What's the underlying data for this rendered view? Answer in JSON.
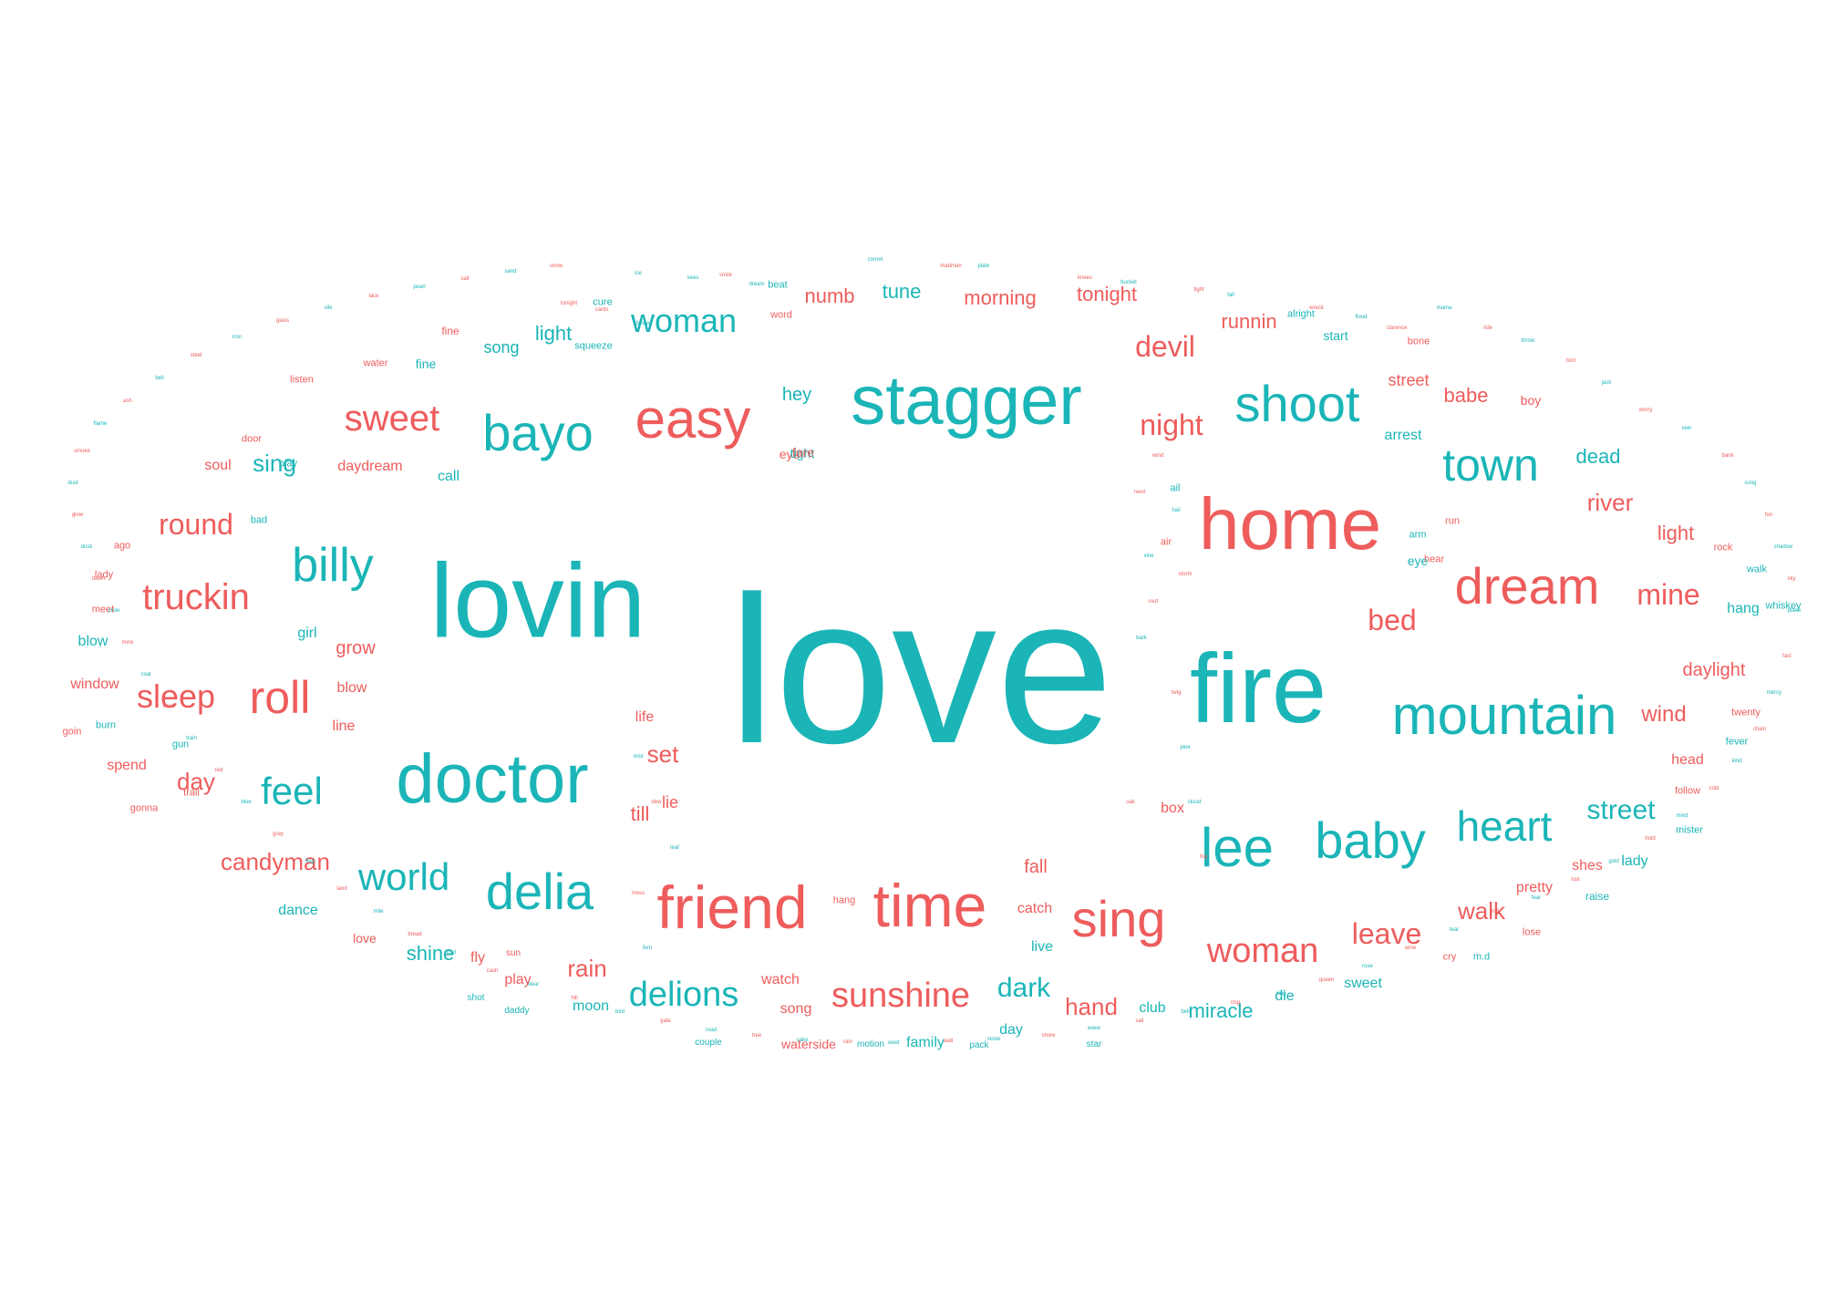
{
  "colors": {
    "teal": "#1bb5b7",
    "coral": "#ee5c5c"
  },
  "words": [
    {
      "text": "love",
      "color": "teal",
      "weight": 100
    },
    {
      "text": "lovin",
      "color": "teal",
      "weight": 46
    },
    {
      "text": "home",
      "color": "coral",
      "weight": 38
    },
    {
      "text": "fire",
      "color": "teal",
      "weight": 43
    },
    {
      "text": "stagger",
      "color": "teal",
      "weight": 35
    },
    {
      "text": "doctor",
      "color": "teal",
      "weight": 37
    },
    {
      "text": "mountain",
      "color": "teal",
      "weight": 30
    },
    {
      "text": "friend",
      "color": "coral",
      "weight": 32
    },
    {
      "text": "time",
      "color": "coral",
      "weight": 32
    },
    {
      "text": "easy",
      "color": "coral",
      "weight": 30
    },
    {
      "text": "bayo",
      "color": "teal",
      "weight": 28
    },
    {
      "text": "shoot",
      "color": "teal",
      "weight": 28
    },
    {
      "text": "dream",
      "color": "coral",
      "weight": 28
    },
    {
      "text": "lee",
      "color": "teal",
      "weight": 30
    },
    {
      "text": "baby",
      "color": "teal",
      "weight": 28
    },
    {
      "text": "delia",
      "color": "teal",
      "weight": 28
    },
    {
      "text": "billy",
      "color": "teal",
      "weight": 27
    },
    {
      "text": "sing",
      "color": "coral",
      "weight": 28
    },
    {
      "text": "town",
      "color": "teal",
      "weight": 25
    },
    {
      "text": "roll",
      "color": "coral",
      "weight": 25
    },
    {
      "text": "heart",
      "color": "teal",
      "weight": 24
    },
    {
      "text": "feel",
      "color": "teal",
      "weight": 22
    },
    {
      "text": "world",
      "color": "teal",
      "weight": 22
    },
    {
      "text": "sweet",
      "color": "coral",
      "weight": 21
    },
    {
      "text": "truckin",
      "color": "coral",
      "weight": 22
    },
    {
      "text": "sunshine",
      "color": "coral",
      "weight": 20
    },
    {
      "text": "delions",
      "color": "teal",
      "weight": 20
    },
    {
      "text": "woman",
      "color": "coral",
      "weight": 20
    },
    {
      "text": "woman",
      "color": "teal",
      "weight": 19
    },
    {
      "text": "sleep",
      "color": "coral",
      "weight": 19
    },
    {
      "text": "round",
      "color": "coral",
      "weight": 18
    },
    {
      "text": "mine",
      "color": "coral",
      "weight": 18
    },
    {
      "text": "street",
      "color": "teal",
      "weight": 18
    },
    {
      "text": "night",
      "color": "coral",
      "weight": 18
    },
    {
      "text": "devil",
      "color": "coral",
      "weight": 18
    },
    {
      "text": "leave",
      "color": "coral",
      "weight": 18
    },
    {
      "text": "dark",
      "color": "teal",
      "weight": 18
    },
    {
      "text": "bed",
      "color": "coral",
      "weight": 18
    },
    {
      "text": "candyman",
      "color": "coral",
      "weight": 16
    },
    {
      "text": "rain",
      "color": "coral",
      "weight": 16
    },
    {
      "text": "set",
      "color": "coral",
      "weight": 16
    },
    {
      "text": "hand",
      "color": "coral",
      "weight": 16
    },
    {
      "text": "walk",
      "color": "coral",
      "weight": 16
    },
    {
      "text": "river",
      "color": "coral",
      "weight": 16
    },
    {
      "text": "dead",
      "color": "teal",
      "weight": 15
    },
    {
      "text": "day",
      "color": "coral",
      "weight": 16
    },
    {
      "text": "sing",
      "color": "teal",
      "weight": 16
    },
    {
      "text": "light",
      "color": "teal",
      "weight": 14
    },
    {
      "text": "light",
      "color": "coral",
      "weight": 14
    },
    {
      "text": "shine",
      "color": "teal",
      "weight": 14
    },
    {
      "text": "miracle",
      "color": "teal",
      "weight": 14
    },
    {
      "text": "babe",
      "color": "coral",
      "weight": 14
    },
    {
      "text": "wind",
      "color": "coral",
      "weight": 15
    },
    {
      "text": "daylight",
      "color": "coral",
      "weight": 13
    },
    {
      "text": "tonight",
      "color": "coral",
      "weight": 14
    },
    {
      "text": "morning",
      "color": "coral",
      "weight": 14
    },
    {
      "text": "tune",
      "color": "teal",
      "weight": 14
    },
    {
      "text": "numb",
      "color": "coral",
      "weight": 14
    },
    {
      "text": "runnin",
      "color": "coral",
      "weight": 13
    },
    {
      "text": "hey",
      "color": "teal",
      "weight": 13
    },
    {
      "text": "grow",
      "color": "coral",
      "weight": 13
    },
    {
      "text": "till",
      "color": "coral",
      "weight": 14
    },
    {
      "text": "song",
      "color": "teal",
      "weight": 12
    },
    {
      "text": "song",
      "color": "coral",
      "weight": 11
    },
    {
      "text": "world",
      "color": "coral",
      "weight": 0
    },
    {
      "text": "fall",
      "color": "coral",
      "weight": 12
    },
    {
      "text": "catch",
      "color": "coral",
      "weight": 11
    },
    {
      "text": "live",
      "color": "teal",
      "weight": 11
    },
    {
      "text": "watch",
      "color": "coral",
      "weight": 11
    },
    {
      "text": "moon",
      "color": "teal",
      "weight": 11
    },
    {
      "text": "play",
      "color": "coral",
      "weight": 11
    },
    {
      "text": "fly",
      "color": "coral",
      "weight": 11
    },
    {
      "text": "love",
      "color": "coral",
      "weight": 10
    },
    {
      "text": "dance",
      "color": "teal",
      "weight": 11
    },
    {
      "text": "call",
      "color": "teal",
      "weight": 11
    },
    {
      "text": "daydream",
      "color": "coral",
      "weight": 11
    },
    {
      "text": "soul",
      "color": "coral",
      "weight": 11
    },
    {
      "text": "blow",
      "color": "teal",
      "weight": 11
    },
    {
      "text": "blow",
      "color": "coral",
      "weight": 10
    },
    {
      "text": "window",
      "color": "coral",
      "weight": 11
    },
    {
      "text": "spend",
      "color": "coral",
      "weight": 11
    },
    {
      "text": "hang",
      "color": "teal",
      "weight": 11
    },
    {
      "text": "head",
      "color": "coral",
      "weight": 11
    },
    {
      "text": "raise",
      "color": "teal",
      "weight": 9
    },
    {
      "text": "lady",
      "color": "teal",
      "weight": 11
    },
    {
      "text": "shes",
      "color": "coral",
      "weight": 11
    },
    {
      "text": "pretty",
      "color": "coral",
      "weight": 11
    },
    {
      "text": "sweet",
      "color": "teal",
      "weight": 11
    },
    {
      "text": "die",
      "color": "teal",
      "weight": 11
    },
    {
      "text": "club",
      "color": "teal",
      "weight": 11
    },
    {
      "text": "box",
      "color": "coral",
      "weight": 10
    },
    {
      "text": "day",
      "color": "teal",
      "weight": 11
    },
    {
      "text": "family",
      "color": "teal",
      "weight": 10
    },
    {
      "text": "waterside",
      "color": "coral",
      "weight": 10
    },
    {
      "text": "motion",
      "color": "teal",
      "weight": 8
    },
    {
      "text": "pack",
      "color": "teal",
      "weight": 8
    },
    {
      "text": "star",
      "color": "teal",
      "weight": 8
    },
    {
      "text": "couple",
      "color": "teal",
      "weight": 8
    },
    {
      "text": "daddy",
      "color": "teal",
      "weight": 8
    },
    {
      "text": "shot",
      "color": "teal",
      "weight": 8
    },
    {
      "text": "sun",
      "color": "coral",
      "weight": 8
    },
    {
      "text": "line",
      "color": "coral",
      "weight": 10
    },
    {
      "text": "girl",
      "color": "teal",
      "weight": 10
    },
    {
      "text": "lie",
      "color": "coral",
      "weight": 12
    },
    {
      "text": "life",
      "color": "coral",
      "weight": 11
    },
    {
      "text": "street",
      "color": "coral",
      "weight": 12
    },
    {
      "text": "arrest",
      "color": "teal",
      "weight": 10
    },
    {
      "text": "eye",
      "color": "teal",
      "weight": 10
    },
    {
      "text": "eye",
      "color": "coral",
      "weight": 10
    },
    {
      "text": "tight",
      "color": "teal",
      "weight": 10
    },
    {
      "text": "boy",
      "color": "coral",
      "weight": 10
    },
    {
      "text": "fare",
      "color": "coral",
      "weight": 10
    },
    {
      "text": "fine",
      "color": "teal",
      "weight": 8
    },
    {
      "text": "fine",
      "color": "coral",
      "weight": 7
    },
    {
      "text": "squeeze",
      "color": "teal",
      "weight": 8
    },
    {
      "text": "listen",
      "color": "coral",
      "weight": 8
    },
    {
      "text": "water",
      "color": "coral",
      "weight": 10
    },
    {
      "text": "start",
      "color": "teal",
      "weight": 8
    },
    {
      "text": "alright",
      "color": "teal",
      "weight": 7
    },
    {
      "text": "bone",
      "color": "coral",
      "weight": 8
    },
    {
      "text": "word",
      "color": "coral",
      "weight": 7
    },
    {
      "text": "beat",
      "color": "teal",
      "weight": 7
    },
    {
      "text": "cure",
      "color": "teal",
      "weight": 8
    },
    {
      "text": "gun",
      "color": "teal",
      "weight": 8
    },
    {
      "text": "gonna",
      "color": "coral",
      "weight": 7
    },
    {
      "text": "trail",
      "color": "coral",
      "weight": 7
    },
    {
      "text": "goin",
      "color": "coral",
      "weight": 7
    },
    {
      "text": "burn",
      "color": "teal",
      "weight": 7
    },
    {
      "text": "lady",
      "color": "coral",
      "weight": 7
    },
    {
      "text": "meet",
      "color": "coral",
      "weight": 7
    },
    {
      "text": "ago",
      "color": "coral",
      "weight": 7
    },
    {
      "text": "bad",
      "color": "teal",
      "weight": 7
    },
    {
      "text": "door",
      "color": "coral",
      "weight": 7
    },
    {
      "text": "play",
      "color": "teal",
      "weight": 7
    },
    {
      "text": "rock",
      "color": "coral",
      "weight": 7
    },
    {
      "text": "whiskey",
      "color": "teal",
      "weight": 7
    },
    {
      "text": "walk",
      "color": "teal",
      "weight": 7
    },
    {
      "text": "twenty",
      "color": "coral",
      "weight": 7
    },
    {
      "text": "fever",
      "color": "teal",
      "weight": 7
    },
    {
      "text": "follow",
      "color": "coral",
      "weight": 7
    },
    {
      "text": "mister",
      "color": "teal",
      "weight": 7
    },
    {
      "text": "lose",
      "color": "coral",
      "weight": 7
    },
    {
      "text": "cry",
      "color": "coral",
      "weight": 7
    },
    {
      "text": "m.d",
      "color": "teal",
      "weight": 7
    },
    {
      "text": "ail",
      "color": "teal",
      "weight": 6
    },
    {
      "text": "air",
      "color": "coral",
      "weight": 6
    },
    {
      "text": "run",
      "color": "coral",
      "weight": 6
    },
    {
      "text": "arm",
      "color": "teal",
      "weight": 6
    },
    {
      "text": "hear",
      "color": "coral",
      "weight": 6
    },
    {
      "text": "hang",
      "color": "coral",
      "weight": 6
    }
  ],
  "tiny_words": [
    "cornet",
    "madman",
    "plate",
    "knees",
    "bucket",
    "tight",
    "fall",
    "wreck",
    "sees",
    "smile",
    "dream",
    "cards",
    "broke",
    "tonight",
    "flood",
    "clarence",
    "mama",
    "ride",
    "throw",
    "bird",
    "jack",
    "worry",
    "vein",
    "bank",
    "song",
    "fun",
    "shadow",
    "sky",
    "plane",
    "fast",
    "mercy",
    "chain",
    "kind",
    "cold",
    "mind",
    "hold",
    "gold",
    "lost",
    "fear",
    "roll",
    "tear",
    "wine",
    "rose",
    "queen",
    "king",
    "ring",
    "bell",
    "sail",
    "wave",
    "shore",
    "stone",
    "wall",
    "seed",
    "rain",
    "cake",
    "tree",
    "road",
    "gate",
    "bird",
    "hill",
    "deal",
    "cash",
    "lord",
    "bread",
    "mile",
    "land",
    "flag",
    "gray",
    "blue",
    "red",
    "train",
    "track",
    "coal",
    "mine",
    "crow",
    "dawn",
    "dusk",
    "glow",
    "dust",
    "smoke",
    "flame",
    "ash",
    "bell",
    "steel",
    "iron",
    "glass",
    "silk",
    "lace",
    "pearl",
    "salt",
    "sand",
    "snow",
    "ice",
    "wind",
    "hail",
    "storm",
    "cloud",
    "fog",
    "mist",
    "dew",
    "leaf",
    "moss",
    "fern",
    "reed",
    "vine",
    "root",
    "bark",
    "twig",
    "pine",
    "oak"
  ]
}
